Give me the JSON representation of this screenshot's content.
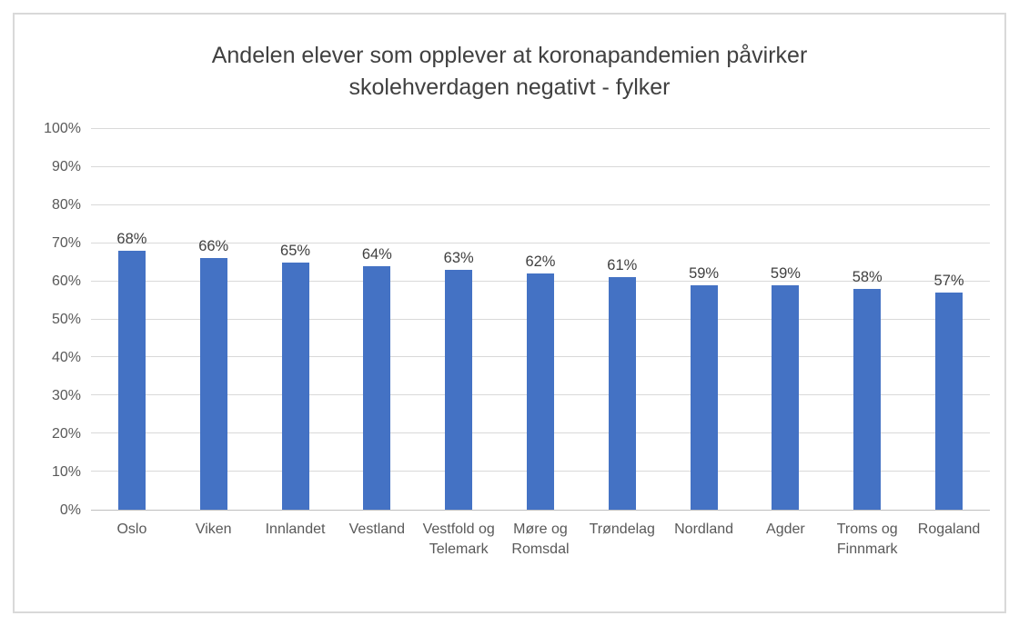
{
  "chart_data": {
    "type": "bar",
    "title": "Andelen elever som opplever at koronapandemien påvirker skolehverdagen negativt - fylker",
    "categories": [
      "Oslo",
      "Viken",
      "Innlandet",
      "Vestland",
      "Vestfold og Telemark",
      "Møre og Romsdal",
      "Trøndelag",
      "Nordland",
      "Agder",
      "Troms og Finnmark",
      "Rogaland"
    ],
    "values": [
      68,
      66,
      65,
      64,
      63,
      62,
      61,
      59,
      59,
      58,
      57
    ],
    "value_labels": [
      "68%",
      "66%",
      "65%",
      "64%",
      "63%",
      "62%",
      "61%",
      "59%",
      "59%",
      "58%",
      "57%"
    ],
    "xlabel": "",
    "ylabel": "",
    "ylim": [
      0,
      100
    ],
    "yticks": [
      0,
      10,
      20,
      30,
      40,
      50,
      60,
      70,
      80,
      90,
      100
    ],
    "ytick_labels": [
      "0%",
      "10%",
      "20%",
      "30%",
      "40%",
      "50%",
      "60%",
      "70%",
      "80%",
      "90%",
      "100%"
    ],
    "grid": "horizontal",
    "legend": "none",
    "bar_color": "#4472C4"
  },
  "colors": {
    "bar": "#4472C4",
    "gridline": "#d9d9d9",
    "axis_line": "#bfbfbf",
    "title_text": "#404040",
    "data_label_text": "#404040",
    "tick_text": "#595959",
    "chart_border": "#d9d9d9",
    "background": "#ffffff"
  }
}
